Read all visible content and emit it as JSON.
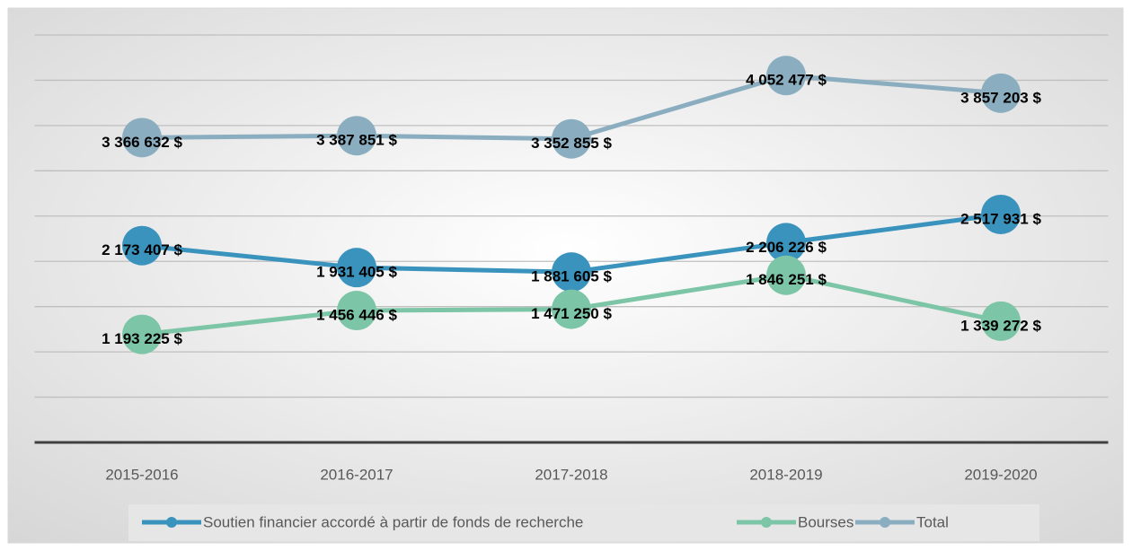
{
  "chart_data": {
    "type": "line",
    "categories": [
      "2015-2016",
      "2016-2017",
      "2017-2018",
      "2018-2019",
      "2019-2020"
    ],
    "series": [
      {
        "name": "Soutien financier accordé à partir de fonds de recherche",
        "color": "#3a93bd",
        "values": [
          2173407,
          1931405,
          1881605,
          2206226,
          2517931
        ],
        "value_labels": [
          "2 173 407 $",
          "1 931 405 $",
          "1 881 605 $",
          "2 206 226 $",
          "2 517 931 $"
        ]
      },
      {
        "name": "Bourses",
        "color": "#7cc5a6",
        "values": [
          1193225,
          1456446,
          1471250,
          1846251,
          1339272
        ],
        "value_labels": [
          "1 193 225 $",
          "1 456 446 $",
          "1 471 250 $",
          "1 846 251 $",
          "1 339 272 $"
        ]
      },
      {
        "name": "Total",
        "color": "#8aaec0",
        "values": [
          3366632,
          3387851,
          3352855,
          4052477,
          3857203
        ],
        "value_labels": [
          "3 366 632 $",
          "3 387 851 $",
          "3 352 855 $",
          "4 052 477 $",
          "3 857 203 $"
        ]
      }
    ],
    "ylim": [
      0,
      4500000
    ],
    "yticks": [
      0,
      500000,
      1000000,
      1500000,
      2000000,
      2500000,
      3000000,
      3500000,
      4000000,
      4500000
    ],
    "grid": true,
    "legend": "bottom"
  }
}
